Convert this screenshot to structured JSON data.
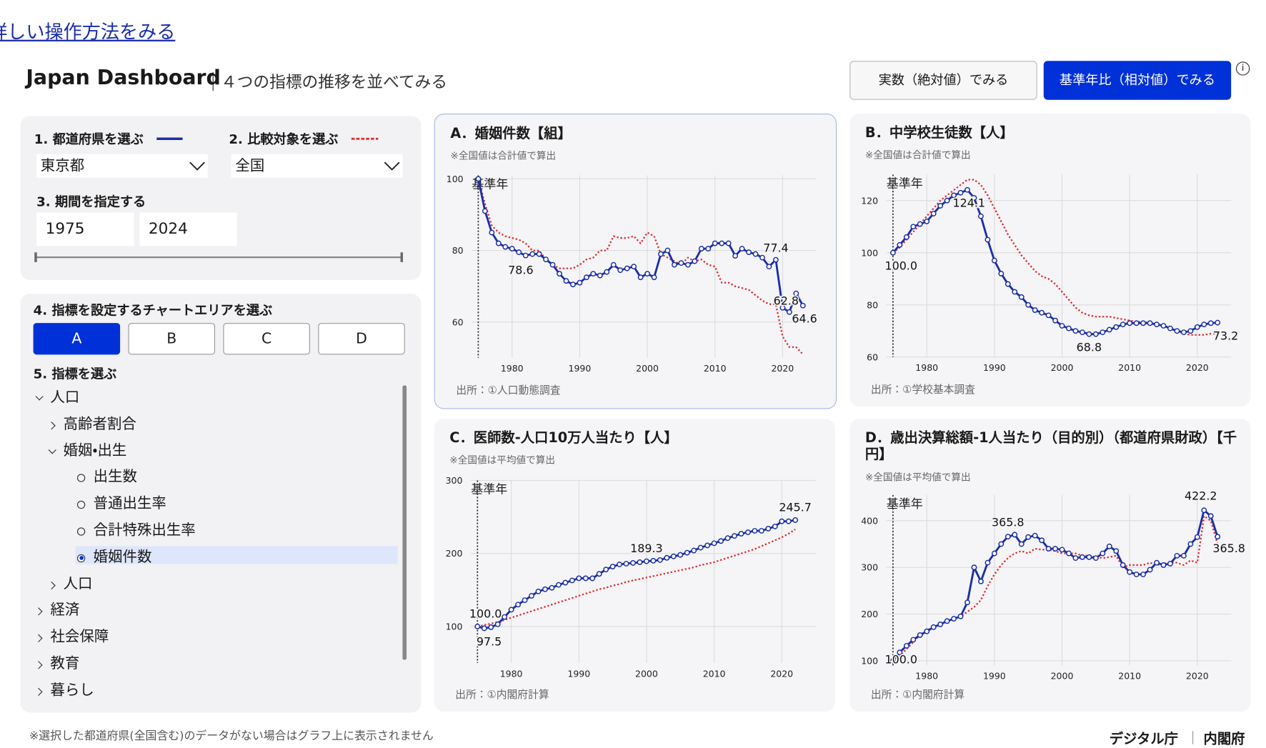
{
  "header": {
    "help_link": "詳しい操作方法をみる",
    "title": "Japan Dashboard",
    "separator": "｜",
    "subtitle": "４つの指標の推移を並べてみる",
    "buttons": [
      "実数（絶対値）でみる",
      "基準年比（相対値）でみる"
    ],
    "info": "i"
  },
  "controls": {
    "prefecture_label": "1. 都道府県を選ぶ",
    "prefecture": "東京都",
    "compare_label": "2. 比較対象を選ぶ",
    "compare": "全国",
    "period_label": "3. 期間を指定する",
    "period_start": "1975",
    "period_end": "2024",
    "area_label": "4. 指標を設定するチャートエリアを選ぶ",
    "areas": [
      "A",
      "B",
      "C",
      "D"
    ],
    "indicator_label": "5. 指標を選ぶ",
    "tree": [
      {
        "label": "人口",
        "expanded": true,
        "children": [
          {
            "label": "高齢者割合",
            "expanded": false
          },
          {
            "label": "婚姻・出生",
            "expanded": true,
            "children": [
              {
                "label": "出生数"
              },
              {
                "label": "普通出生率"
              },
              {
                "label": "合計特殊出生率"
              },
              {
                "label": "婚姻件数",
                "selected": true
              }
            ]
          },
          {
            "label": "人口",
            "expanded": false
          }
        ]
      },
      {
        "label": "経済",
        "expanded": false
      },
      {
        "label": "社会保障",
        "expanded": false
      },
      {
        "label": "教育",
        "expanded": false
      },
      {
        "label": "暮らし",
        "expanded": false
      }
    ]
  },
  "chart_data": [
    {
      "type": "line",
      "title": "A．婚姻件数【組】",
      "note": "※全国値は合計値で算出",
      "source": "出所：①人口動態調査",
      "base_label": "基準年",
      "grid": true,
      "x": [
        1975,
        1976,
        1977,
        1978,
        1979,
        1980,
        1981,
        1982,
        1983,
        1984,
        1985,
        1986,
        1987,
        1988,
        1989,
        1990,
        1991,
        1992,
        1993,
        1994,
        1995,
        1996,
        1997,
        1998,
        1999,
        2000,
        2001,
        2002,
        2003,
        2004,
        2005,
        2006,
        2007,
        2008,
        2009,
        2010,
        2011,
        2012,
        2013,
        2014,
        2015,
        2016,
        2017,
        2018,
        2019,
        2020,
        2021,
        2022,
        2023
      ],
      "series": [
        {
          "color": "#1a2ea8",
          "style": "solid",
          "markers": true,
          "values": [
            100,
            91,
            85,
            82,
            81,
            80.5,
            79.5,
            78.6,
            79,
            79,
            77.5,
            76,
            73.5,
            71.5,
            70.5,
            71,
            72.5,
            73.5,
            73,
            74,
            76,
            74.5,
            75,
            75.5,
            72.5,
            73.5,
            72.5,
            79,
            80,
            76,
            76.5,
            76,
            77,
            80.5,
            80.5,
            82,
            82,
            82,
            78.5,
            80.5,
            79.5,
            79,
            78,
            75.5,
            77.4,
            64,
            62.8,
            68,
            64.6
          ]
        },
        {
          "color": "#e0282e",
          "style": "dotted",
          "markers": false,
          "values": [
            100,
            93,
            87,
            85,
            84,
            83.5,
            83,
            82,
            80,
            80,
            77.5,
            76,
            75,
            75,
            75,
            76,
            77.5,
            78,
            80,
            80,
            84,
            83.5,
            83.5,
            84,
            82,
            85,
            84,
            79,
            78,
            77,
            76,
            78,
            77,
            77.5,
            76,
            75.5,
            71,
            71,
            70,
            69.5,
            69,
            67.5,
            66,
            65,
            65,
            56,
            53,
            53,
            51
          ]
        }
      ],
      "annotations": [
        {
          "x": 1982,
          "value": 78.6,
          "label": "78.6"
        },
        {
          "x": 2019,
          "value": 77.4,
          "label": "77.4"
        },
        {
          "x": 2021,
          "value": 62.8,
          "label": "62.8"
        },
        {
          "x": 2023,
          "value": 64.6,
          "label": "64.6"
        }
      ],
      "xlim": [
        1974,
        2025
      ],
      "xticks": [
        1980,
        1990,
        2000,
        2010,
        2020
      ],
      "ylim": [
        50,
        101
      ],
      "yticks": [
        60,
        80,
        100
      ]
    },
    {
      "type": "line",
      "title": "B．中学校生徒数【人】",
      "note": "※全国値は合計値で算出",
      "source": "出所：①学校基本調査",
      "base_label": "基準年",
      "grid": true,
      "x": [
        1975,
        1976,
        1977,
        1978,
        1979,
        1980,
        1981,
        1982,
        1983,
        1984,
        1985,
        1986,
        1987,
        1988,
        1989,
        1990,
        1991,
        1992,
        1993,
        1994,
        1995,
        1996,
        1997,
        1998,
        1999,
        2000,
        2001,
        2002,
        2003,
        2004,
        2005,
        2006,
        2007,
        2008,
        2009,
        2010,
        2011,
        2012,
        2013,
        2014,
        2015,
        2016,
        2017,
        2018,
        2019,
        2020,
        2021,
        2022,
        2023
      ],
      "series": [
        {
          "color": "#1a2ea8",
          "style": "solid",
          "markers": true,
          "values": [
            100,
            103,
            106,
            110,
            111,
            112,
            115,
            118,
            120,
            122,
            123,
            124.1,
            121,
            114,
            105,
            97,
            92,
            88,
            85,
            83,
            80,
            78,
            77,
            76,
            74,
            72,
            71,
            70,
            69.5,
            68.8,
            68.8,
            69.5,
            70.5,
            71.5,
            72.5,
            73,
            73,
            73,
            73,
            72.5,
            72,
            71,
            70,
            69.5,
            70,
            71.5,
            72.5,
            73,
            73.2
          ]
        },
        {
          "color": "#e0282e",
          "style": "dotted",
          "markers": false,
          "values": [
            100,
            102,
            105,
            108,
            111,
            114,
            117,
            120,
            122,
            124,
            126,
            128,
            128,
            126,
            122,
            117,
            112,
            107,
            103,
            99,
            96,
            93,
            91,
            90,
            88,
            85,
            82,
            79,
            77,
            76,
            75.5,
            75.5,
            75.5,
            75,
            74.5,
            74,
            73.5,
            73.5,
            73,
            72.5,
            72,
            71,
            70,
            69,
            68.5,
            68.5,
            68.5,
            69,
            69
          ]
        }
      ],
      "annotations": [
        {
          "x": 1975,
          "value": 100,
          "label": "100.0"
        },
        {
          "x": 1986,
          "value": 124.1,
          "label": "124.1"
        },
        {
          "x": 2004,
          "value": 68.8,
          "label": "68.8"
        },
        {
          "x": 2023,
          "value": 73.2,
          "label": "73.2"
        }
      ],
      "xlim": [
        1974,
        2025
      ],
      "xticks": [
        1980,
        1990,
        2000,
        2010,
        2020
      ],
      "ylim": [
        60,
        130
      ],
      "yticks": [
        60,
        80,
        100,
        120
      ]
    },
    {
      "type": "line",
      "title": "C．医師数-人口10万人当たり【人】",
      "note": "※全国値は平均値で算出",
      "source": "出所：①内閣府計算",
      "base_label": "基準年",
      "grid": true,
      "x": [
        1975,
        1976,
        1977,
        1978,
        1979,
        1980,
        1981,
        1982,
        1983,
        1984,
        1985,
        1986,
        1987,
        1988,
        1989,
        1990,
        1991,
        1992,
        1993,
        1994,
        1995,
        1996,
        1997,
        1998,
        1999,
        2000,
        2001,
        2002,
        2003,
        2004,
        2005,
        2006,
        2007,
        2008,
        2009,
        2010,
        2011,
        2012,
        2013,
        2014,
        2015,
        2016,
        2017,
        2018,
        2019,
        2020,
        2021,
        2022
      ],
      "series": [
        {
          "color": "#1a2ea8",
          "style": "solid",
          "markers": true,
          "values": [
            100,
            97.5,
            99,
            103,
            113,
            123,
            130,
            136,
            142,
            148,
            151,
            153,
            157,
            160,
            163,
            166,
            166,
            166,
            172,
            178,
            182,
            185,
            186,
            187,
            188,
            189.3,
            190,
            191,
            194,
            196,
            198,
            201,
            204,
            208,
            211,
            214,
            217,
            221,
            224,
            227,
            229,
            231,
            231,
            234,
            237,
            244,
            244,
            245.7
          ]
        },
        {
          "color": "#e0282e",
          "style": "dotted",
          "markers": false,
          "values": [
            100,
            102,
            104,
            106,
            109,
            112,
            115,
            118,
            121,
            124,
            127,
            130,
            133,
            136,
            139,
            142,
            145,
            148,
            151,
            153,
            156,
            158,
            161,
            163,
            165,
            167,
            169,
            171,
            173,
            175,
            177,
            179,
            181,
            184,
            186,
            188,
            191,
            194,
            197,
            200,
            203,
            206,
            210,
            214,
            218,
            222,
            227,
            233
          ]
        }
      ],
      "annotations": [
        {
          "x": 1975,
          "value": 100,
          "label": "100.0"
        },
        {
          "x": 1976,
          "value": 97.5,
          "label": "97.5"
        },
        {
          "x": 2000,
          "value": 189.3,
          "label": "189.3"
        },
        {
          "x": 2022,
          "value": 245.7,
          "label": "245.7"
        }
      ],
      "xlim": [
        1974,
        2025
      ],
      "xticks": [
        1980,
        1990,
        2000,
        2010,
        2020
      ],
      "ylim": [
        50,
        300
      ],
      "yticks": [
        100,
        200,
        300
      ]
    },
    {
      "type": "line",
      "title": "D．歳出決算総額-1人当たり（目的別）（都道府県財政）【千円】",
      "note": "※全国値は平均値で算出",
      "source": "出所：①内閣府計算",
      "base_label": "基準年",
      "grid": true,
      "x": [
        1975,
        1976,
        1977,
        1978,
        1979,
        1980,
        1981,
        1982,
        1983,
        1984,
        1985,
        1986,
        1987,
        1988,
        1989,
        1990,
        1991,
        1992,
        1993,
        1994,
        1995,
        1996,
        1997,
        1998,
        1999,
        2000,
        2001,
        2002,
        2003,
        2004,
        2005,
        2006,
        2007,
        2008,
        2009,
        2010,
        2011,
        2012,
        2013,
        2014,
        2015,
        2016,
        2017,
        2018,
        2019,
        2020,
        2021,
        2022,
        2023
      ],
      "series": [
        {
          "color": "#1a2ea8",
          "style": "solid",
          "markers": true,
          "values": [
            100,
            118,
            132,
            145,
            155,
            163,
            172,
            178,
            185,
            190,
            195,
            225,
            300,
            270,
            310,
            330,
            350,
            365.8,
            370,
            350,
            365,
            368,
            358,
            340,
            340,
            338,
            330,
            320,
            322,
            322,
            320,
            330,
            345,
            335,
            305,
            290,
            285,
            285,
            295,
            310,
            305,
            308,
            325,
            325,
            350,
            365,
            422.2,
            410,
            365.8
          ]
        },
        {
          "color": "#e0282e",
          "style": "dotted",
          "markers": false,
          "values": [
            100,
            110,
            125,
            140,
            155,
            165,
            172,
            178,
            185,
            190,
            195,
            205,
            215,
            230,
            260,
            285,
            305,
            320,
            330,
            335,
            330,
            340,
            338,
            338,
            335,
            330,
            330,
            330,
            325,
            325,
            322,
            320,
            322,
            325,
            300,
            305,
            305,
            305,
            310,
            305,
            308,
            310,
            310,
            305,
            315,
            310,
            410,
            400,
            350
          ]
        }
      ],
      "annotations": [
        {
          "x": 1975,
          "value": 100,
          "label": "100.0"
        },
        {
          "x": 1992,
          "value": 365.8,
          "label": "365.8"
        },
        {
          "x": 2021,
          "value": 422.2,
          "label": "422.2"
        },
        {
          "x": 2023,
          "value": 365.8,
          "label": "365.8"
        }
      ],
      "xlim": [
        1974,
        2025
      ],
      "xticks": [
        1980,
        1990,
        2000,
        2010,
        2020
      ],
      "ylim": [
        90,
        455
      ],
      "yticks": [
        100,
        200,
        300,
        400
      ]
    }
  ],
  "footer": {
    "note": "※選択した都道府県(全国含む)のデータがない場合はグラフ上に表示されません",
    "agency1": "デジタル庁",
    "separator": "｜",
    "agency2": "内閣府"
  }
}
